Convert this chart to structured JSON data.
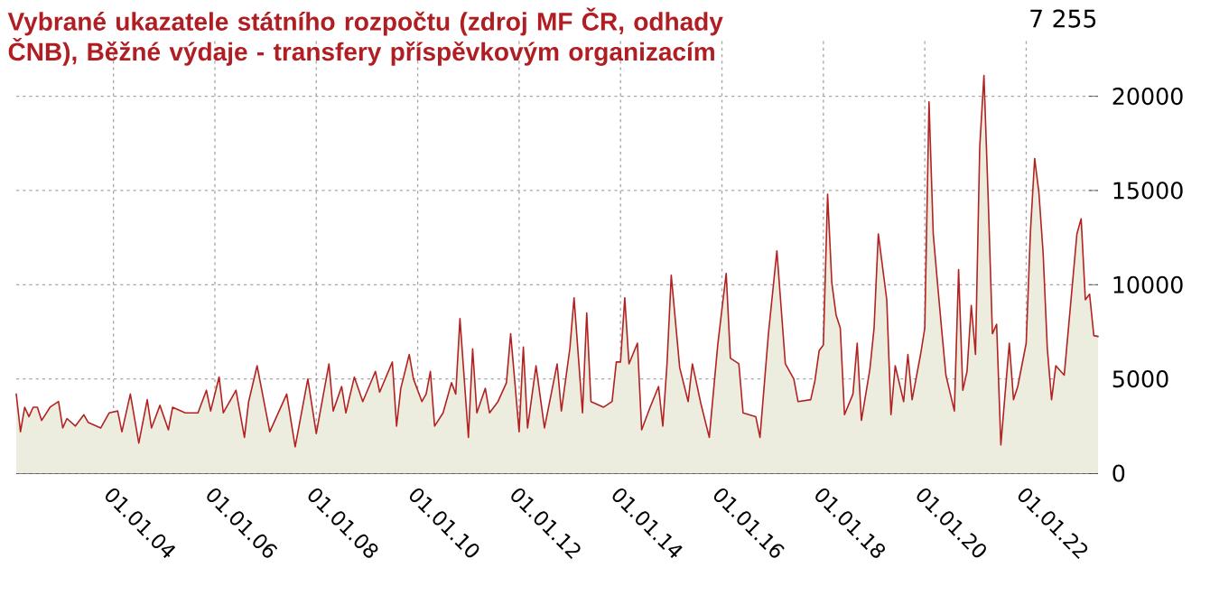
{
  "chart_data": {
    "type": "area",
    "title": "Vybrané ukazatele státního rozpočtu (zdroj MF ČR, odhady ČNB), Běžné výdaje - transfery příspěvkovým organizacím",
    "annotations": [
      "7 255"
    ],
    "xlim": [
      "2002-02",
      "2023-06"
    ],
    "xticks": [
      {
        "value": "2004-01-01",
        "label": "01.01.04"
      },
      {
        "value": "2006-01-01",
        "label": "01.01.06"
      },
      {
        "value": "2008-01-01",
        "label": "01.01.08"
      },
      {
        "value": "2010-01-01",
        "label": "01.01.10"
      },
      {
        "value": "2012-01-01",
        "label": "01.01.12"
      },
      {
        "value": "2014-01-01",
        "label": "01.01.14"
      },
      {
        "value": "2016-01-01",
        "label": "01.01.16"
      },
      {
        "value": "2018-01-01",
        "label": "01.01.18"
      },
      {
        "value": "2020-01-01",
        "label": "01.01.20"
      },
      {
        "value": "2022-01-01",
        "label": "01.01.22"
      }
    ],
    "ylim": [
      0,
      23000
    ],
    "yticks": [
      0,
      5000,
      10000,
      15000,
      20000
    ],
    "grid": true,
    "series": [
      {
        "color": "#b22222",
        "x": [
          "2002-02",
          "2002-03",
          "2002-04",
          "2002-05",
          "2002-06",
          "2002-07",
          "2002-08",
          "2002-10",
          "2002-12",
          "2003-01",
          "2003-02",
          "2003-04",
          "2003-06",
          "2003-07",
          "2003-10",
          "2003-12",
          "2004-02",
          "2004-03",
          "2004-05",
          "2004-07",
          "2004-09",
          "2004-10",
          "2004-12",
          "2005-02",
          "2005-03",
          "2005-06",
          "2005-09",
          "2005-11",
          "2005-12",
          "2006-02",
          "2006-03",
          "2006-06",
          "2006-08",
          "2006-09",
          "2006-11",
          "2007-02",
          "2007-06",
          "2007-08",
          "2007-11",
          "2008-01",
          "2008-04",
          "2008-05",
          "2008-07",
          "2008-08",
          "2008-10",
          "2008-12",
          "2009-03",
          "2009-04",
          "2009-07",
          "2009-08",
          "2009-09",
          "2009-11",
          "2009-12",
          "2010-02",
          "2010-03",
          "2010-04",
          "2010-05",
          "2010-07",
          "2010-09",
          "2010-10",
          "2010-11",
          "2011-01",
          "2011-02",
          "2011-03",
          "2011-05",
          "2011-06",
          "2011-08",
          "2011-10",
          "2011-11",
          "2012-01",
          "2012-02",
          "2012-03",
          "2012-05",
          "2012-07",
          "2012-10",
          "2012-11",
          "2013-01",
          "2013-02",
          "2013-04",
          "2013-05",
          "2013-06",
          "2013-09",
          "2013-11",
          "2013-12",
          "2014-01",
          "2014-02",
          "2014-03",
          "2014-05",
          "2014-06",
          "2014-08",
          "2014-10",
          "2014-11",
          "2014-12",
          "2015-01",
          "2015-03",
          "2015-05",
          "2015-06",
          "2015-08",
          "2015-10",
          "2015-12",
          "2016-02",
          "2016-03",
          "2016-05",
          "2016-06",
          "2016-09",
          "2016-10",
          "2016-12",
          "2017-02",
          "2017-04",
          "2017-06",
          "2017-07",
          "2017-10",
          "2017-11",
          "2017-12",
          "2018-01",
          "2018-02",
          "2018-03",
          "2018-04",
          "2018-05",
          "2018-06",
          "2018-08",
          "2018-09",
          "2018-10",
          "2018-12",
          "2019-01",
          "2019-02",
          "2019-04",
          "2019-05",
          "2019-06",
          "2019-08",
          "2019-09",
          "2019-10",
          "2019-12",
          "2020-01",
          "2020-02",
          "2020-03",
          "2020-04",
          "2020-05",
          "2020-06",
          "2020-08",
          "2020-09",
          "2020-10",
          "2020-11",
          "2020-12",
          "2021-01",
          "2021-02",
          "2021-03",
          "2021-04",
          "2021-05",
          "2021-06",
          "2021-07",
          "2021-09",
          "2021-10",
          "2021-11",
          "2022-01",
          "2022-02",
          "2022-03",
          "2022-04",
          "2022-05",
          "2022-06",
          "2022-07",
          "2022-08",
          "2022-10",
          "2022-11",
          "2023-01",
          "2023-02",
          "2023-03",
          "2023-04",
          "2023-05",
          "2023-06"
        ],
        "values": [
          4200,
          2200,
          3500,
          3000,
          3500,
          3500,
          2800,
          3500,
          3800,
          2400,
          2900,
          2500,
          3100,
          2700,
          2400,
          3200,
          3300,
          2200,
          4200,
          1600,
          3900,
          2400,
          3600,
          2300,
          3500,
          3200,
          3200,
          4400,
          3300,
          5100,
          3200,
          4400,
          1900,
          3800,
          5700,
          2200,
          4200,
          1400,
          5000,
          2100,
          5800,
          3300,
          4600,
          3200,
          5100,
          3800,
          5400,
          4300,
          5900,
          2500,
          4500,
          6300,
          5000,
          3800,
          4200,
          5400,
          2500,
          3200,
          4800,
          4200,
          8200,
          1900,
          6600,
          3200,
          4500,
          3200,
          3800,
          4800,
          7400,
          2200,
          6700,
          2400,
          5700,
          2400,
          5800,
          3300,
          6600,
          9300,
          3200,
          8500,
          3800,
          3500,
          3800,
          5900,
          5900,
          9300,
          5800,
          6900,
          2300,
          3500,
          4600,
          2500,
          5800,
          10500,
          5600,
          3800,
          5800,
          3700,
          1900,
          6800,
          10600,
          6100,
          5800,
          3200,
          3000,
          1900,
          7400,
          11800,
          5800,
          5000,
          3800,
          3900,
          4900,
          6500,
          6800,
          14800,
          10100,
          8400,
          7700,
          3100,
          4200,
          6900,
          2800,
          5500,
          7700,
          12700,
          9200,
          3100,
          5700,
          3800,
          6300,
          3900,
          6300,
          7700,
          19700,
          12700,
          10100,
          7600,
          5200,
          3300,
          10800,
          4400,
          5400,
          8900,
          6300,
          17300,
          21100,
          14600,
          7400,
          7900,
          1500,
          6900,
          3900,
          4600,
          6900,
          12800,
          16700,
          14900,
          11700,
          6600,
          3900,
          5700,
          5200,
          7700,
          12700,
          13500,
          9200,
          9500,
          7300,
          7255
        ]
      }
    ]
  }
}
